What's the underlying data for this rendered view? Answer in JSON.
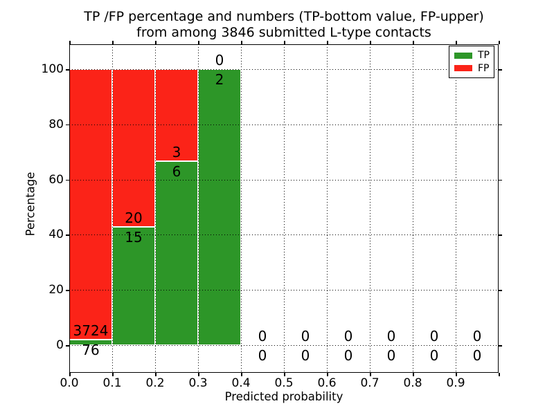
{
  "title": {
    "line1": "TP /FP percentage and numbers (TP-bottom value, FP-upper)",
    "line2": "from among 3846 submitted L-type contacts"
  },
  "colors": {
    "tp": "#2d9628",
    "fp": "#fb2318",
    "grid": "#000000",
    "spine": "#000000",
    "bar_edge": "#ffffff",
    "background": "#ffffff"
  },
  "chart_data": {
    "type": "bar",
    "stacked": true,
    "title": "TP /FP percentage and numbers (TP-bottom value, FP-upper)\nfrom among 3846 submitted L-type contacts",
    "xlabel": "Predicted probability",
    "ylabel": "Percentage",
    "xlim": [
      0.0,
      1.0
    ],
    "ylim": [
      -10,
      110
    ],
    "x_ticks": [
      "0.0",
      "0.1",
      "0.2",
      "0.3",
      "0.4",
      "0.5",
      "0.6",
      "0.7",
      "0.8",
      "0.9"
    ],
    "y_ticks": [
      0,
      20,
      40,
      60,
      80,
      100
    ],
    "grid": "dotted",
    "total_submitted": 3846,
    "bins": [
      {
        "range": [
          0.0,
          0.1
        ],
        "tp": 76,
        "fp": 3724
      },
      {
        "range": [
          0.1,
          0.2
        ],
        "tp": 15,
        "fp": 20
      },
      {
        "range": [
          0.2,
          0.3
        ],
        "tp": 6,
        "fp": 3
      },
      {
        "range": [
          0.3,
          0.4
        ],
        "tp": 2,
        "fp": 0
      },
      {
        "range": [
          0.4,
          0.5
        ],
        "tp": 0,
        "fp": 0
      },
      {
        "range": [
          0.5,
          0.6
        ],
        "tp": 0,
        "fp": 0
      },
      {
        "range": [
          0.6,
          0.7
        ],
        "tp": 0,
        "fp": 0
      },
      {
        "range": [
          0.7,
          0.8
        ],
        "tp": 0,
        "fp": 0
      },
      {
        "range": [
          0.8,
          0.9
        ],
        "tp": 0,
        "fp": 0
      },
      {
        "range": [
          0.9,
          1.0
        ],
        "tp": 0,
        "fp": 0
      }
    ],
    "legend": {
      "position": "upper right",
      "entries": [
        {
          "label": "TP"
        },
        {
          "label": "FP"
        }
      ]
    }
  }
}
